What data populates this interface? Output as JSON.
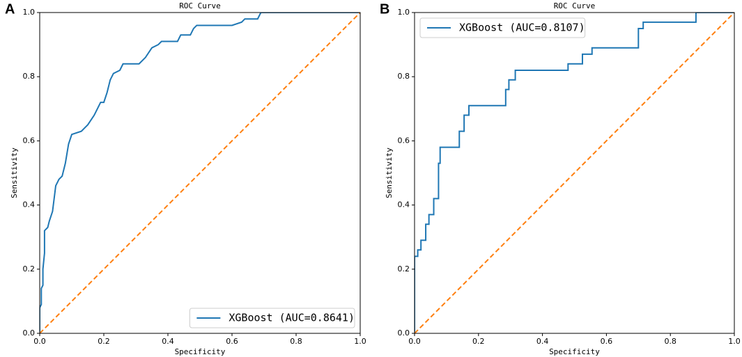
{
  "chart_data": [
    {
      "type": "line",
      "panel": "A",
      "title": "ROC Curve",
      "xlabel": "Specificity",
      "ylabel": "Sensitivity",
      "xlim": [
        0,
        1
      ],
      "ylim": [
        0,
        1
      ],
      "xticks": [
        {
          "value": 0,
          "label": "0.0"
        },
        0.2,
        0.4,
        0.6,
        0.8,
        {
          "value": 1,
          "label": "1.0"
        }
      ],
      "yticks": [
        {
          "value": 0,
          "label": "0.0"
        },
        0.2,
        0.4,
        0.6,
        0.8,
        {
          "value": 1,
          "label": "1.0"
        }
      ],
      "legend": "lower right",
      "series": [
        {
          "name": "XGBoost (AUC=0.8641)",
          "color": "#1f77b4",
          "linestyle": "solid",
          "x": [
            0,
            0,
            0.005,
            0.005,
            0.01,
            0.01,
            0.015,
            0.015,
            0.025,
            0.03,
            0.04,
            0.045,
            0.05,
            0.06,
            0.07,
            0.08,
            0.085,
            0.09,
            0.1,
            0.13,
            0.14,
            0.15,
            0.17,
            0.19,
            0.2,
            0.21,
            0.22,
            0.23,
            0.25,
            0.26,
            0.31,
            0.33,
            0.35,
            0.37,
            0.38,
            0.43,
            0.44,
            0.47,
            0.48,
            0.49,
            0.6,
            0.63,
            0.64,
            0.68,
            0.69,
            1
          ],
          "values": [
            0,
            0.08,
            0.09,
            0.14,
            0.15,
            0.2,
            0.25,
            0.32,
            0.33,
            0.35,
            0.38,
            0.42,
            0.46,
            0.48,
            0.49,
            0.53,
            0.56,
            0.59,
            0.62,
            0.63,
            0.64,
            0.65,
            0.68,
            0.72,
            0.72,
            0.75,
            0.79,
            0.81,
            0.82,
            0.84,
            0.84,
            0.86,
            0.89,
            0.9,
            0.91,
            0.91,
            0.93,
            0.93,
            0.95,
            0.96,
            0.96,
            0.97,
            0.98,
            0.98,
            1,
            1
          ]
        },
        {
          "color": "#ff7f0e",
          "linestyle": "dashed",
          "x": [
            0,
            1
          ],
          "values": [
            0,
            1
          ]
        }
      ]
    },
    {
      "type": "line",
      "panel": "B",
      "title": "ROC Curve",
      "xlabel": "Specificity",
      "ylabel": "Sensitivity",
      "xlim": [
        0,
        1
      ],
      "ylim": [
        0,
        1
      ],
      "xticks": [
        {
          "value": 0,
          "label": "0.0"
        },
        0.2,
        0.4,
        0.6,
        0.8,
        {
          "value": 1,
          "label": "1.0"
        }
      ],
      "yticks": [
        {
          "value": 0,
          "label": "0.0"
        },
        0.2,
        0.4,
        0.6,
        0.8,
        {
          "value": 1,
          "label": "1.0"
        }
      ],
      "legend": "upper left",
      "series": [
        {
          "name": "XGBoost (AUC=0.8107)",
          "color": "#1f77b4",
          "linestyle": "solid",
          "x": [
            0,
            0,
            0.01,
            0.01,
            0.02,
            0.02,
            0.035,
            0.035,
            0.045,
            0.045,
            0.06,
            0.06,
            0.075,
            0.075,
            0.08,
            0.08,
            0.14,
            0.14,
            0.155,
            0.155,
            0.17,
            0.17,
            0.285,
            0.285,
            0.295,
            0.295,
            0.315,
            0.315,
            0.48,
            0.48,
            0.525,
            0.525,
            0.555,
            0.555,
            0.7,
            0.7,
            0.715,
            0.715,
            0.88,
            0.88,
            1
          ],
          "values": [
            0,
            0.24,
            0.24,
            0.26,
            0.26,
            0.29,
            0.29,
            0.34,
            0.34,
            0.37,
            0.37,
            0.42,
            0.42,
            0.53,
            0.53,
            0.58,
            0.58,
            0.63,
            0.63,
            0.68,
            0.68,
            0.71,
            0.71,
            0.76,
            0.76,
            0.79,
            0.79,
            0.82,
            0.82,
            0.84,
            0.84,
            0.87,
            0.87,
            0.89,
            0.89,
            0.95,
            0.95,
            0.97,
            0.97,
            1,
            1
          ]
        },
        {
          "color": "#ff7f0e",
          "linestyle": "dashed",
          "x": [
            0,
            1
          ],
          "values": [
            0,
            1
          ]
        }
      ]
    }
  ]
}
